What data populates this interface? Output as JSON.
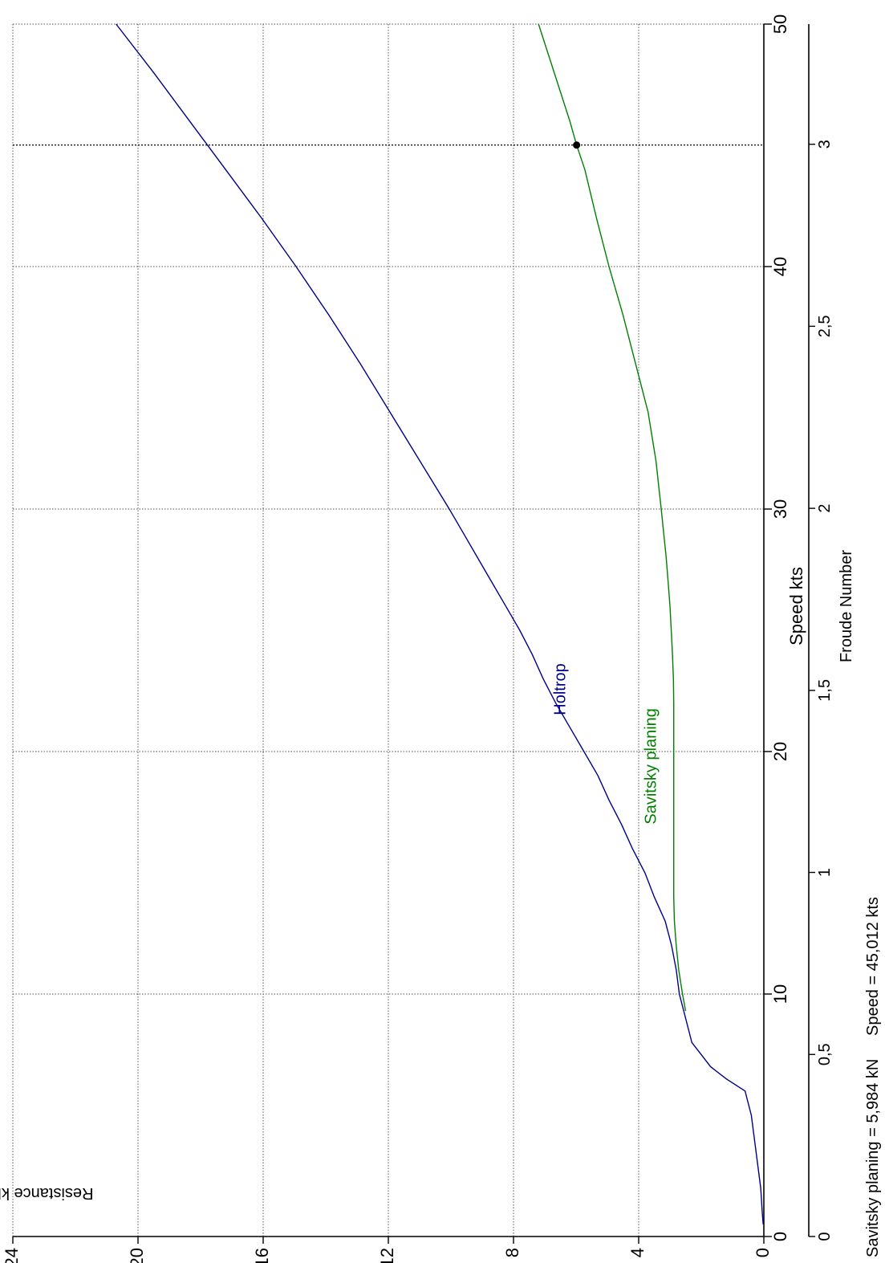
{
  "chart_data": {
    "type": "line",
    "xlabel": "Speed  kts",
    "x2label": "Froude Number",
    "ylabel": "Resistance  kN",
    "xlim": [
      0,
      50
    ],
    "ylim": [
      0,
      24
    ],
    "x_ticks": [
      0,
      10,
      20,
      30,
      40,
      50
    ],
    "y_ticks": [
      0,
      4,
      8,
      12,
      16,
      20,
      24
    ],
    "froude_ticks": [
      0,
      0.5,
      1,
      1.5,
      2,
      2.5,
      3
    ],
    "froude_tick_labels": [
      "0",
      "0,5",
      "1",
      "1,5",
      "2",
      "2,5",
      "3"
    ],
    "froude_per_knot": 0.0666,
    "grid": true,
    "series": [
      {
        "name": "Holtrop",
        "color": "#00008b",
        "x": [
          0.5,
          1,
          2,
          3,
          4,
          5,
          6,
          6.5,
          7,
          8,
          8.5,
          9,
          10,
          11,
          12,
          13,
          14,
          15,
          16,
          17,
          18,
          19,
          20,
          21,
          22,
          23,
          24,
          25,
          26,
          27,
          28,
          29,
          30,
          32,
          34,
          36,
          38,
          40,
          42,
          44,
          46,
          48,
          50
        ],
        "y": [
          0.02,
          0.05,
          0.1,
          0.2,
          0.3,
          0.4,
          0.6,
          1.2,
          1.7,
          2.3,
          2.4,
          2.5,
          2.7,
          2.8,
          2.95,
          3.15,
          3.5,
          3.8,
          4.2,
          4.55,
          4.95,
          5.3,
          5.75,
          6.2,
          6.65,
          7.05,
          7.4,
          7.8,
          8.25,
          8.7,
          9.15,
          9.6,
          10.05,
          11.0,
          11.95,
          12.9,
          13.9,
          14.95,
          16.05,
          17.2,
          18.35,
          19.5,
          20.7
        ]
      },
      {
        "name": "Savitsky planing",
        "color": "#008000",
        "x": [
          9.3,
          10,
          11,
          12,
          13,
          14,
          15,
          16,
          17,
          18,
          19,
          20,
          21,
          22,
          23,
          24,
          25,
          26,
          27,
          28,
          29,
          30,
          32,
          34,
          36,
          38,
          40,
          42,
          44,
          45.012,
          46,
          48,
          50
        ],
        "y": [
          2.5,
          2.6,
          2.72,
          2.8,
          2.86,
          2.88,
          2.88,
          2.88,
          2.88,
          2.88,
          2.88,
          2.88,
          2.88,
          2.88,
          2.89,
          2.92,
          2.96,
          3.0,
          3.06,
          3.12,
          3.2,
          3.28,
          3.45,
          3.7,
          4.1,
          4.5,
          4.95,
          5.35,
          5.72,
          5.984,
          6.2,
          6.7,
          7.2
        ]
      }
    ],
    "annotations": [
      {
        "text": "Holtrop",
        "x": 21.5,
        "y": 6.3,
        "color": "#00008b"
      },
      {
        "text": "Savitsky planing",
        "x": 17,
        "y": 3.4,
        "color": "#008000"
      }
    ],
    "cursor": {
      "x": 45.012,
      "y": 5.984
    },
    "readout": {
      "resistance": "Savitsky planing = 5,984 kN",
      "speed": "Speed = 45,012 kts"
    }
  }
}
